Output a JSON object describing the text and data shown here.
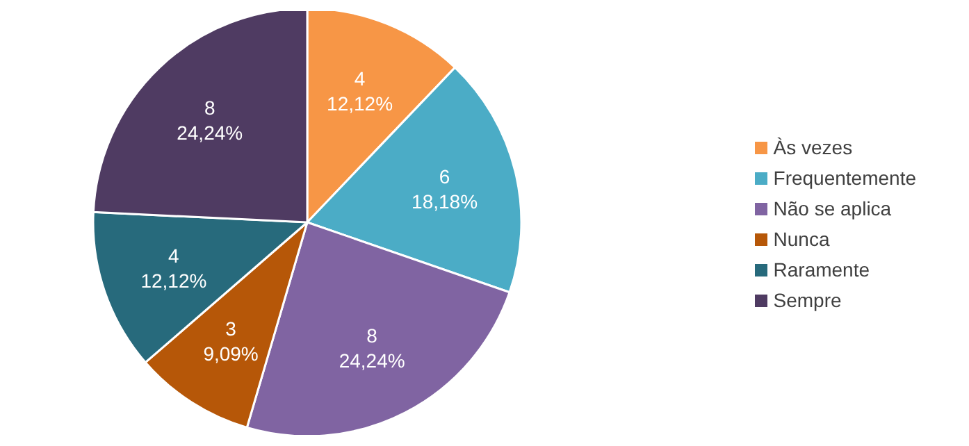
{
  "chart_data": {
    "type": "pie",
    "categories": [
      "Às vezes",
      "Frequentemente",
      "Não se aplica",
      "Nunca",
      "Raramente",
      "Sempre"
    ],
    "values": [
      4,
      6,
      8,
      3,
      4,
      8
    ],
    "colors": [
      "#f79646",
      "#4bacc6",
      "#8064a2",
      "#b65708",
      "#276a7c",
      "#4f3b62"
    ],
    "value_labels": [
      "4\n12,12%",
      "6\n18,18%",
      "8\n24,24%",
      "3\n9,09%",
      "4\n12,12%",
      "8\n24,24%"
    ],
    "legend": "right"
  }
}
